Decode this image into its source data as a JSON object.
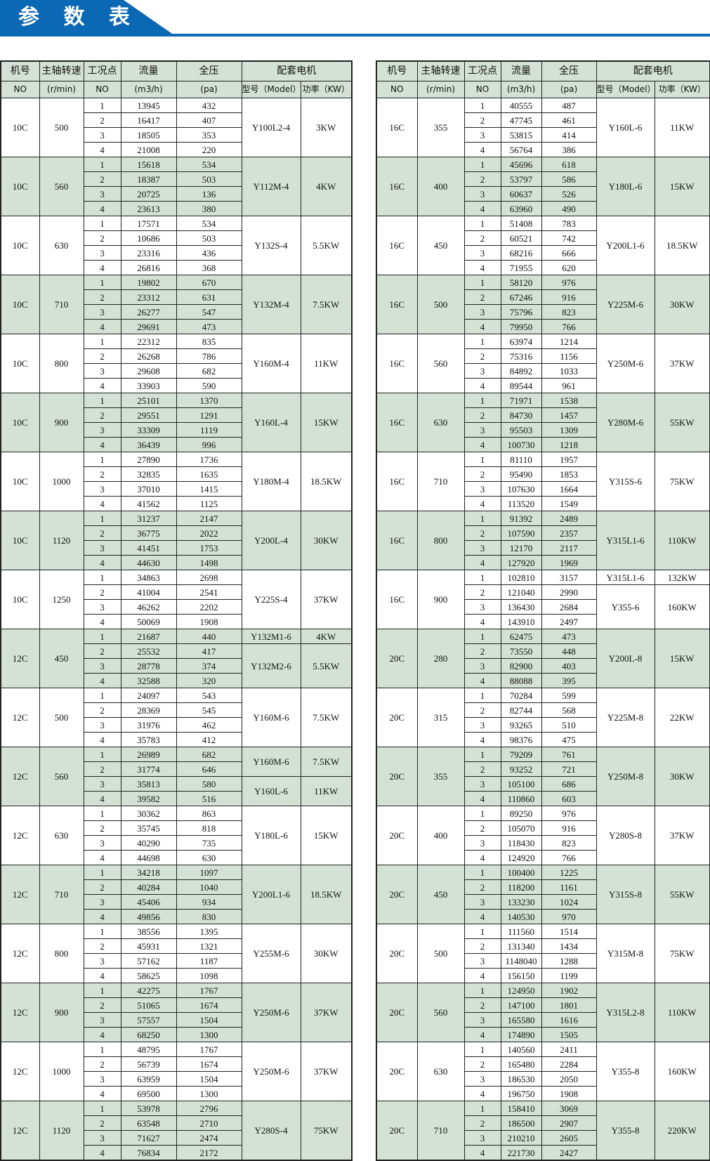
{
  "header": {
    "title": "参 数 表",
    "accent_color": "#0b68b4",
    "shade_color": "#d3e2d4"
  },
  "columns": {
    "row1": [
      "机号",
      "主轴转速",
      "工况点",
      "流量",
      "全压",
      "配套电机"
    ],
    "row2": [
      "NO",
      "(r/min)",
      "NO",
      "(m3/h)",
      "(pa)",
      "型号（Model）",
      "功率（KW）"
    ]
  },
  "left": [
    {
      "machine": "10C",
      "speed": "500",
      "points": [
        [
          "1",
          "13945",
          "432"
        ],
        [
          "2",
          "16417",
          "407"
        ],
        [
          "3",
          "18505",
          "353"
        ],
        [
          "4",
          "21008",
          "220"
        ]
      ],
      "motors": [
        [
          "Y100L2-4",
          "3KW",
          4
        ]
      ]
    },
    {
      "machine": "10C",
      "speed": "560",
      "points": [
        [
          "1",
          "15618",
          "534"
        ],
        [
          "2",
          "18387",
          "503"
        ],
        [
          "3",
          "20725",
          "136"
        ],
        [
          "4",
          "23613",
          "380"
        ]
      ],
      "motors": [
        [
          "Y112M-4",
          "4KW",
          4
        ]
      ]
    },
    {
      "machine": "10C",
      "speed": "630",
      "points": [
        [
          "1",
          "17571",
          "534"
        ],
        [
          "2",
          "10686",
          "503"
        ],
        [
          "3",
          "23316",
          "436"
        ],
        [
          "4",
          "26816",
          "368"
        ]
      ],
      "motors": [
        [
          "Y132S-4",
          "5.5KW",
          4
        ]
      ]
    },
    {
      "machine": "10C",
      "speed": "710",
      "points": [
        [
          "1",
          "19802",
          "670"
        ],
        [
          "2",
          "23312",
          "631"
        ],
        [
          "3",
          "26277",
          "547"
        ],
        [
          "4",
          "29691",
          "473"
        ]
      ],
      "motors": [
        [
          "Y132M-4",
          "7.5KW",
          4
        ]
      ]
    },
    {
      "machine": "10C",
      "speed": "800",
      "points": [
        [
          "1",
          "22312",
          "835"
        ],
        [
          "2",
          "26268",
          "786"
        ],
        [
          "3",
          "29608",
          "682"
        ],
        [
          "4",
          "33903",
          "590"
        ]
      ],
      "motors": [
        [
          "Y160M-4",
          "11KW",
          4
        ]
      ]
    },
    {
      "machine": "10C",
      "speed": "900",
      "points": [
        [
          "1",
          "25101",
          "1370"
        ],
        [
          "2",
          "29551",
          "1291"
        ],
        [
          "3",
          "33309",
          "1119"
        ],
        [
          "4",
          "36439",
          "996"
        ]
      ],
      "motors": [
        [
          "Y160L-4",
          "15KW",
          4
        ]
      ]
    },
    {
      "machine": "10C",
      "speed": "1000",
      "points": [
        [
          "1",
          "27890",
          "1736"
        ],
        [
          "2",
          "32835",
          "1635"
        ],
        [
          "3",
          "37010",
          "1415"
        ],
        [
          "4",
          "41562",
          "1125"
        ]
      ],
      "motors": [
        [
          "Y180M-4",
          "18.5KW",
          4
        ]
      ]
    },
    {
      "machine": "10C",
      "speed": "1120",
      "points": [
        [
          "1",
          "31237",
          "2147"
        ],
        [
          "2",
          "36775",
          "2022"
        ],
        [
          "3",
          "41451",
          "1753"
        ],
        [
          "4",
          "44630",
          "1498"
        ]
      ],
      "motors": [
        [
          "Y200L-4",
          "30KW",
          4
        ]
      ]
    },
    {
      "machine": "10C",
      "speed": "1250",
      "points": [
        [
          "1",
          "34863",
          "2698"
        ],
        [
          "2",
          "41004",
          "2541"
        ],
        [
          "3",
          "46262",
          "2202"
        ],
        [
          "4",
          "50069",
          "1908"
        ]
      ],
      "motors": [
        [
          "Y225S-4",
          "37KW",
          4
        ]
      ]
    },
    {
      "machine": "12C",
      "speed": "450",
      "points": [
        [
          "1",
          "21687",
          "440"
        ],
        [
          "2",
          "25532",
          "417"
        ],
        [
          "3",
          "28778",
          "374"
        ],
        [
          "4",
          "32588",
          "320"
        ]
      ],
      "motors": [
        [
          "Y132M1-6",
          "4KW",
          1
        ],
        [
          "Y132M2-6",
          "5.5KW",
          3
        ]
      ]
    },
    {
      "machine": "12C",
      "speed": "500",
      "points": [
        [
          "1",
          "24097",
          "543"
        ],
        [
          "2",
          "28369",
          "545"
        ],
        [
          "3",
          "31976",
          "462"
        ],
        [
          "4",
          "35783",
          "412"
        ]
      ],
      "motors": [
        [
          "Y160M-6",
          "7.5KW",
          4
        ]
      ]
    },
    {
      "machine": "12C",
      "speed": "560",
      "points": [
        [
          "1",
          "26989",
          "682"
        ],
        [
          "2",
          "31774",
          "646"
        ],
        [
          "3",
          "35813",
          "580"
        ],
        [
          "4",
          "39582",
          "516"
        ]
      ],
      "motors": [
        [
          "Y160M-6",
          "7.5KW",
          2
        ],
        [
          "Y160L-6",
          "11KW",
          2
        ]
      ]
    },
    {
      "machine": "12C",
      "speed": "630",
      "points": [
        [
          "1",
          "30362",
          "863"
        ],
        [
          "2",
          "35745",
          "818"
        ],
        [
          "3",
          "40290",
          "735"
        ],
        [
          "4",
          "44698",
          "630"
        ]
      ],
      "motors": [
        [
          "Y180L-6",
          "15KW",
          4
        ]
      ]
    },
    {
      "machine": "12C",
      "speed": "710",
      "points": [
        [
          "1",
          "34218",
          "1097"
        ],
        [
          "2",
          "40284",
          "1040"
        ],
        [
          "3",
          "45406",
          "934"
        ],
        [
          "4",
          "49856",
          "830"
        ]
      ],
      "motors": [
        [
          "Y200L1-6",
          "18.5KW",
          4
        ]
      ]
    },
    {
      "machine": "12C",
      "speed": "800",
      "points": [
        [
          "1",
          "38556",
          "1395"
        ],
        [
          "2",
          "45931",
          "1321"
        ],
        [
          "3",
          "57162",
          "1187"
        ],
        [
          "4",
          "58625",
          "1098"
        ]
      ],
      "motors": [
        [
          "Y255M-6",
          "30KW",
          4
        ]
      ]
    },
    {
      "machine": "12C",
      "speed": "900",
      "points": [
        [
          "1",
          "42275",
          "1767"
        ],
        [
          "2",
          "51065",
          "1674"
        ],
        [
          "3",
          "57557",
          "1504"
        ],
        [
          "4",
          "68250",
          "1300"
        ]
      ],
      "motors": [
        [
          "Y250M-6",
          "37KW",
          4
        ]
      ]
    },
    {
      "machine": "12C",
      "speed": "1000",
      "points": [
        [
          "1",
          "48795",
          "1767"
        ],
        [
          "2",
          "56739",
          "1674"
        ],
        [
          "3",
          "63959",
          "1504"
        ],
        [
          "4",
          "69500",
          "1300"
        ]
      ],
      "motors": [
        [
          "Y250M-6",
          "37KW",
          4
        ]
      ]
    },
    {
      "machine": "12C",
      "speed": "1120",
      "points": [
        [
          "1",
          "53978",
          "2796"
        ],
        [
          "2",
          "63548",
          "2710"
        ],
        [
          "3",
          "71627",
          "2474"
        ],
        [
          "4",
          "76834",
          "2172"
        ]
      ],
      "motors": [
        [
          "Y280S-4",
          "75KW",
          4
        ]
      ]
    }
  ],
  "right": [
    {
      "machine": "16C",
      "speed": "355",
      "points": [
        [
          "1",
          "40555",
          "487"
        ],
        [
          "2",
          "47745",
          "461"
        ],
        [
          "3",
          "53815",
          "414"
        ],
        [
          "4",
          "56764",
          "386"
        ]
      ],
      "motors": [
        [
          "Y160L-6",
          "11KW",
          4
        ]
      ]
    },
    {
      "machine": "16C",
      "speed": "400",
      "points": [
        [
          "1",
          "45696",
          "618"
        ],
        [
          "2",
          "53797",
          "586"
        ],
        [
          "3",
          "60637",
          "526"
        ],
        [
          "4",
          "63960",
          "490"
        ]
      ],
      "motors": [
        [
          "Y180L-6",
          "15KW",
          4
        ]
      ]
    },
    {
      "machine": "16C",
      "speed": "450",
      "points": [
        [
          "1",
          "51408",
          "783"
        ],
        [
          "2",
          "60521",
          "742"
        ],
        [
          "3",
          "68216",
          "666"
        ],
        [
          "4",
          "71955",
          "620"
        ]
      ],
      "motors": [
        [
          "Y200L1-6",
          "18.5KW",
          4
        ]
      ]
    },
    {
      "machine": "16C",
      "speed": "500",
      "points": [
        [
          "1",
          "58120",
          "976"
        ],
        [
          "2",
          "67246",
          "916"
        ],
        [
          "3",
          "75796",
          "823"
        ],
        [
          "4",
          "79950",
          "766"
        ]
      ],
      "motors": [
        [
          "Y225M-6",
          "30KW",
          4
        ]
      ]
    },
    {
      "machine": "16C",
      "speed": "560",
      "points": [
        [
          "1",
          "63974",
          "1214"
        ],
        [
          "2",
          "75316",
          "1156"
        ],
        [
          "3",
          "84892",
          "1033"
        ],
        [
          "4",
          "89544",
          "961"
        ]
      ],
      "motors": [
        [
          "Y250M-6",
          "37KW",
          4
        ]
      ]
    },
    {
      "machine": "16C",
      "speed": "630",
      "points": [
        [
          "1",
          "71971",
          "1538"
        ],
        [
          "2",
          "84730",
          "1457"
        ],
        [
          "3",
          "95503",
          "1309"
        ],
        [
          "4",
          "100730",
          "1218"
        ]
      ],
      "motors": [
        [
          "Y280M-6",
          "55KW",
          4
        ]
      ]
    },
    {
      "machine": "16C",
      "speed": "710",
      "points": [
        [
          "1",
          "81110",
          "1957"
        ],
        [
          "2",
          "95490",
          "1853"
        ],
        [
          "3",
          "107630",
          "1664"
        ],
        [
          "4",
          "113520",
          "1549"
        ]
      ],
      "motors": [
        [
          "Y315S-6",
          "75KW",
          4
        ]
      ]
    },
    {
      "machine": "16C",
      "speed": "800",
      "points": [
        [
          "1",
          "91392",
          "2489"
        ],
        [
          "2",
          "107590",
          "2357"
        ],
        [
          "3",
          "12170",
          "2117"
        ],
        [
          "4",
          "127920",
          "1969"
        ]
      ],
      "motors": [
        [
          "Y315L1-6",
          "110KW",
          4
        ]
      ]
    },
    {
      "machine": "16C",
      "speed": "900",
      "points": [
        [
          "1",
          "102810",
          "3157"
        ],
        [
          "2",
          "121040",
          "2990"
        ],
        [
          "3",
          "136430",
          "2684"
        ],
        [
          "4",
          "143910",
          "2497"
        ]
      ],
      "motors": [
        [
          "Y315L1-6",
          "132KW",
          1
        ],
        [
          "Y355-6",
          "160KW",
          3
        ]
      ]
    },
    {
      "machine": "20C",
      "speed": "280",
      "points": [
        [
          "1",
          "62475",
          "473"
        ],
        [
          "2",
          "73550",
          "448"
        ],
        [
          "3",
          "82900",
          "403"
        ],
        [
          "4",
          "88088",
          "395"
        ]
      ],
      "motors": [
        [
          "Y200L-8",
          "15KW",
          4
        ]
      ]
    },
    {
      "machine": "20C",
      "speed": "315",
      "points": [
        [
          "1",
          "70284",
          "599"
        ],
        [
          "2",
          "82744",
          "568"
        ],
        [
          "3",
          "93265",
          "510"
        ],
        [
          "4",
          "98376",
          "475"
        ]
      ],
      "motors": [
        [
          "Y225M-8",
          "22KW",
          4
        ]
      ]
    },
    {
      "machine": "20C",
      "speed": "355",
      "points": [
        [
          "1",
          "79209",
          "761"
        ],
        [
          "2",
          "93252",
          "721"
        ],
        [
          "3",
          "105100",
          "686"
        ],
        [
          "4",
          "110860",
          "603"
        ]
      ],
      "motors": [
        [
          "Y250M-8",
          "30KW",
          4
        ]
      ]
    },
    {
      "machine": "20C",
      "speed": "400",
      "points": [
        [
          "1",
          "89250",
          "976"
        ],
        [
          "2",
          "105070",
          "916"
        ],
        [
          "3",
          "118430",
          "823"
        ],
        [
          "4",
          "124920",
          "766"
        ]
      ],
      "motors": [
        [
          "Y280S-8",
          "37KW",
          4
        ]
      ]
    },
    {
      "machine": "20C",
      "speed": "450",
      "points": [
        [
          "1",
          "100400",
          "1225"
        ],
        [
          "2",
          "118200",
          "1161"
        ],
        [
          "3",
          "133230",
          "1024"
        ],
        [
          "4",
          "140530",
          "970"
        ]
      ],
      "motors": [
        [
          "Y315S-8",
          "55KW",
          4
        ]
      ]
    },
    {
      "machine": "20C",
      "speed": "500",
      "points": [
        [
          "1",
          "111560",
          "1514"
        ],
        [
          "2",
          "131340",
          "1434"
        ],
        [
          "3",
          "1148040",
          "1288"
        ],
        [
          "4",
          "156150",
          "1199"
        ]
      ],
      "motors": [
        [
          "Y315M-8",
          "75KW",
          4
        ]
      ]
    },
    {
      "machine": "20C",
      "speed": "560",
      "points": [
        [
          "1",
          "124950",
          "1902"
        ],
        [
          "2",
          "147100",
          "1801"
        ],
        [
          "3",
          "165580",
          "1616"
        ],
        [
          "4",
          "174890",
          "1505"
        ]
      ],
      "motors": [
        [
          "Y315L2-8",
          "110KW",
          4
        ]
      ]
    },
    {
      "machine": "20C",
      "speed": "630",
      "points": [
        [
          "1",
          "140560",
          "2411"
        ],
        [
          "2",
          "165480",
          "2284"
        ],
        [
          "3",
          "186530",
          "2050"
        ],
        [
          "4",
          "196750",
          "1908"
        ]
      ],
      "motors": [
        [
          "Y355-8",
          "160KW",
          4
        ]
      ]
    },
    {
      "machine": "20C",
      "speed": "710",
      "points": [
        [
          "1",
          "158410",
          "3069"
        ],
        [
          "2",
          "186500",
          "2907"
        ],
        [
          "3",
          "210210",
          "2605"
        ],
        [
          "4",
          "221730",
          "2427"
        ]
      ],
      "motors": [
        [
          "Y355-8",
          "220KW",
          4
        ]
      ]
    }
  ]
}
